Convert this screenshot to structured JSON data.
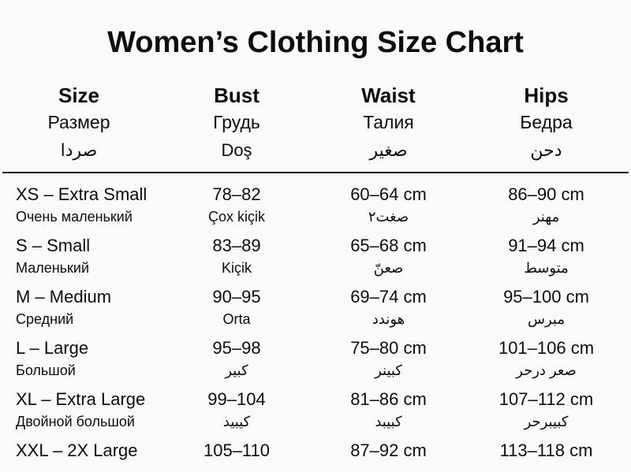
{
  "title": "Women’s Clothing Size Chart",
  "colors": {
    "background": "#fafafa",
    "text": "#0d0d0d",
    "rule": "#191919"
  },
  "table": {
    "columns": [
      {
        "en": "Size",
        "ru": "Размер",
        "l3": "صردا"
      },
      {
        "en": "Bust",
        "ru": "Грудь",
        "l3": "Doş"
      },
      {
        "en": "Waist",
        "ru": "Талия",
        "l3": "صغير"
      },
      {
        "en": "Hips",
        "ru": "Бедра",
        "l3": "دحن"
      }
    ],
    "rows": [
      {
        "size": "XS – Extra Small",
        "size_sub": "Очень маленький",
        "bust": "78–82",
        "bust_sub": "Çox kiçik",
        "waist": "60–64 cm",
        "waist_sub": "صغت٢",
        "hips": "86–90 cm",
        "hips_sub": "مهنر"
      },
      {
        "size": "S – Small",
        "size_sub": "Маленький",
        "bust": "83–89",
        "bust_sub": "Kiçik",
        "waist": "65–68 cm",
        "waist_sub": "صعنّ",
        "hips": "91–94 cm",
        "hips_sub": "متوسط"
      },
      {
        "size": "M – Medium",
        "size_sub": "Средний",
        "bust": "90–95",
        "bust_sub": "Orta",
        "waist": "69–74 cm",
        "waist_sub": "هوندد",
        "hips": "95–100 cm",
        "hips_sub": "مبرس"
      },
      {
        "size": "L – Large",
        "size_sub": "Большой",
        "bust": "95–98",
        "bust_sub": "كبير",
        "waist": "75–80 cm",
        "waist_sub": "كبينر",
        "hips": "101–106 cm",
        "hips_sub": "صعر درحر"
      },
      {
        "size": "XL – Extra Large",
        "size_sub": "Двойной большой",
        "bust": "99–104",
        "bust_sub": "كيبيد",
        "waist": "81–86 cm",
        "waist_sub": "كبيبد",
        "hips": "107–112 cm",
        "hips_sub": "كبيبرحر"
      },
      {
        "size": "XXL – 2X Large",
        "size_sub": "",
        "bust": "105–110",
        "bust_sub": "",
        "waist": "87–92 cm",
        "waist_sub": "",
        "hips": "113–118 cm",
        "hips_sub": ""
      }
    ]
  }
}
